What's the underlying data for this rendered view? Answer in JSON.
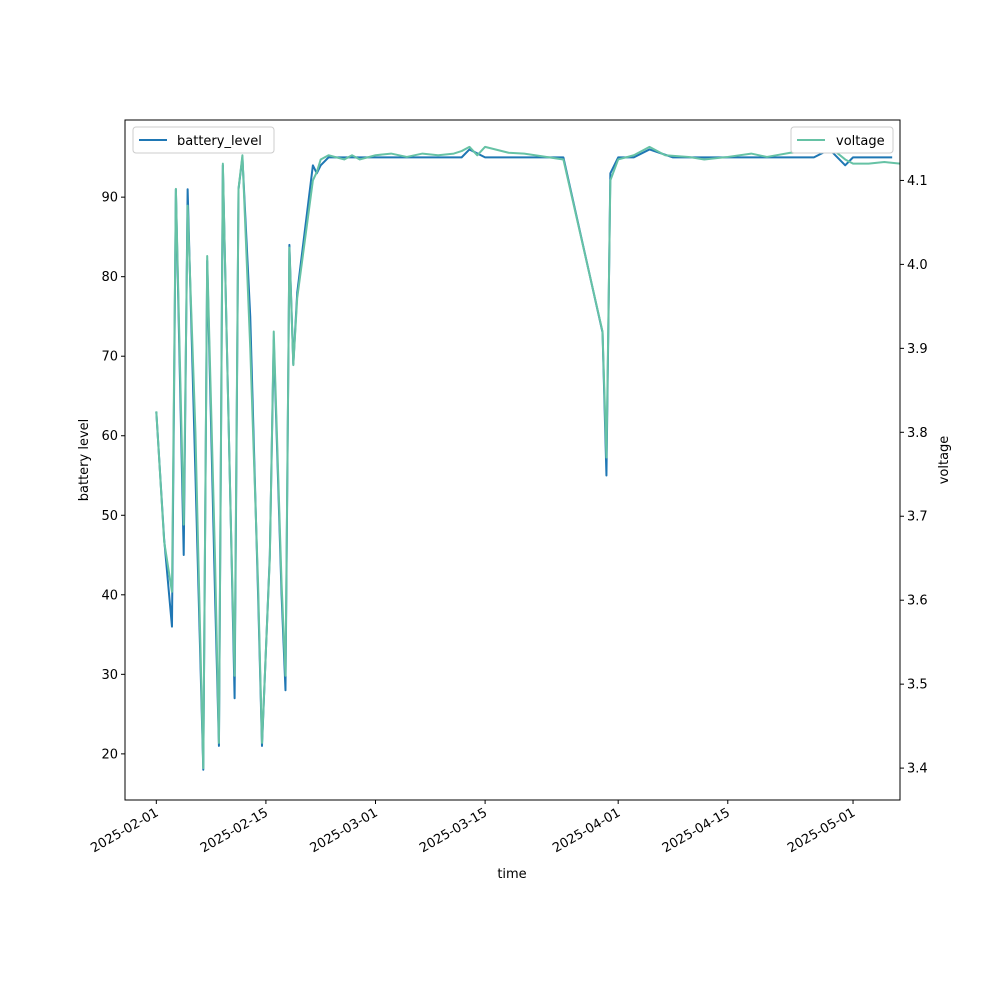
{
  "chart_data": {
    "type": "line",
    "xlabel": "time",
    "ylabel_left": "battery level",
    "ylabel_right": "voltage",
    "x_range": [
      "2025-01-28",
      "2025-05-07"
    ],
    "y_left_range": [
      14.2,
      99.7
    ],
    "y_right_range": [
      3.362,
      4.172
    ],
    "x_ticks": [
      "2025-02-01",
      "2025-02-15",
      "2025-03-01",
      "2025-03-15",
      "2025-04-01",
      "2025-04-15",
      "2025-05-01"
    ],
    "y_left_ticks": [
      20,
      30,
      40,
      50,
      60,
      70,
      80,
      90
    ],
    "y_right_ticks": [
      3.4,
      3.5,
      3.6,
      3.7,
      3.8,
      3.9,
      4.0,
      4.1
    ],
    "legend_left": {
      "label": "battery_level",
      "position": "top-left"
    },
    "legend_right": {
      "label": "voltage",
      "position": "top-right"
    },
    "colors": {
      "battery_level": "#1f77b4",
      "voltage": "#66c2a5"
    },
    "series": [
      {
        "name": "battery_level",
        "axis": "left",
        "points": [
          [
            "2025-02-01",
            63
          ],
          [
            "2025-02-02",
            47
          ],
          [
            "2025-02-03",
            36
          ],
          [
            "2025-02-03T12:00",
            91
          ],
          [
            "2025-02-04T12:00",
            45
          ],
          [
            "2025-02-05",
            91
          ],
          [
            "2025-02-06",
            55
          ],
          [
            "2025-02-07",
            18
          ],
          [
            "2025-02-07T12:00",
            82
          ],
          [
            "2025-02-08T12:00",
            40
          ],
          [
            "2025-02-09",
            21
          ],
          [
            "2025-02-09T12:00",
            94
          ],
          [
            "2025-02-10T12:00",
            50
          ],
          [
            "2025-02-11",
            27
          ],
          [
            "2025-02-11T12:00",
            91
          ],
          [
            "2025-02-12",
            95
          ],
          [
            "2025-02-13",
            75
          ],
          [
            "2025-02-14",
            40
          ],
          [
            "2025-02-14T12:00",
            21
          ],
          [
            "2025-02-15T12:00",
            45
          ],
          [
            "2025-02-16",
            72
          ],
          [
            "2025-02-17",
            40
          ],
          [
            "2025-02-17T12:00",
            28
          ],
          [
            "2025-02-18",
            84
          ],
          [
            "2025-02-18T12:00",
            69
          ],
          [
            "2025-02-19",
            78
          ],
          [
            "2025-02-21",
            94
          ],
          [
            "2025-02-21T12:00",
            93
          ],
          [
            "2025-02-22",
            94
          ],
          [
            "2025-02-23",
            95
          ],
          [
            "2025-03-10",
            95
          ],
          [
            "2025-03-12",
            95
          ],
          [
            "2025-03-13",
            96
          ],
          [
            "2025-03-15",
            95
          ],
          [
            "2025-03-25",
            95
          ],
          [
            "2025-03-30",
            73
          ],
          [
            "2025-03-30T12:00",
            55
          ],
          [
            "2025-03-31",
            93
          ],
          [
            "2025-04-01",
            95
          ],
          [
            "2025-04-03",
            95
          ],
          [
            "2025-04-05",
            96
          ],
          [
            "2025-04-08",
            95
          ],
          [
            "2025-04-20",
            95
          ],
          [
            "2025-04-26",
            95
          ],
          [
            "2025-04-28",
            96
          ],
          [
            "2025-04-30",
            94
          ],
          [
            "2025-05-01",
            95
          ],
          [
            "2025-05-06",
            95
          ]
        ]
      },
      {
        "name": "voltage",
        "axis": "right",
        "points": [
          [
            "2025-02-01",
            3.825
          ],
          [
            "2025-02-02",
            3.67
          ],
          [
            "2025-02-03",
            3.61
          ],
          [
            "2025-02-03T12:00",
            4.09
          ],
          [
            "2025-02-04T12:00",
            3.69
          ],
          [
            "2025-02-05",
            4.07
          ],
          [
            "2025-02-06",
            3.8
          ],
          [
            "2025-02-07",
            3.4
          ],
          [
            "2025-02-07T12:00",
            4.01
          ],
          [
            "2025-02-08T12:00",
            3.65
          ],
          [
            "2025-02-09",
            3.43
          ],
          [
            "2025-02-09T12:00",
            4.12
          ],
          [
            "2025-02-10T12:00",
            3.7
          ],
          [
            "2025-02-11",
            3.51
          ],
          [
            "2025-02-11T12:00",
            4.09
          ],
          [
            "2025-02-12",
            4.13
          ],
          [
            "2025-02-13",
            3.9
          ],
          [
            "2025-02-14",
            3.62
          ],
          [
            "2025-02-14T12:00",
            3.43
          ],
          [
            "2025-02-15T12:00",
            3.65
          ],
          [
            "2025-02-16",
            3.92
          ],
          [
            "2025-02-17",
            3.62
          ],
          [
            "2025-02-17T12:00",
            3.51
          ],
          [
            "2025-02-18",
            4.02
          ],
          [
            "2025-02-18T12:00",
            3.88
          ],
          [
            "2025-02-19",
            3.96
          ],
          [
            "2025-02-21",
            4.1
          ],
          [
            "2025-02-21T12:00",
            4.11
          ],
          [
            "2025-02-22",
            4.125
          ],
          [
            "2025-02-23",
            4.13
          ],
          [
            "2025-02-25",
            4.125
          ],
          [
            "2025-02-26",
            4.13
          ],
          [
            "2025-02-27",
            4.125
          ],
          [
            "2025-03-01",
            4.13
          ],
          [
            "2025-03-03",
            4.132
          ],
          [
            "2025-03-05",
            4.128
          ],
          [
            "2025-03-07",
            4.132
          ],
          [
            "2025-03-09",
            4.13
          ],
          [
            "2025-03-11",
            4.132
          ],
          [
            "2025-03-12",
            4.135
          ],
          [
            "2025-03-13",
            4.14
          ],
          [
            "2025-03-14",
            4.13
          ],
          [
            "2025-03-15",
            4.14
          ],
          [
            "2025-03-18",
            4.133
          ],
          [
            "2025-03-20",
            4.132
          ],
          [
            "2025-03-25",
            4.125
          ],
          [
            "2025-03-30",
            3.92
          ],
          [
            "2025-03-30T12:00",
            3.77
          ],
          [
            "2025-03-31",
            4.1
          ],
          [
            "2025-04-01",
            4.125
          ],
          [
            "2025-04-03",
            4.13
          ],
          [
            "2025-04-05",
            4.14
          ],
          [
            "2025-04-07",
            4.13
          ],
          [
            "2025-04-10",
            4.128
          ],
          [
            "2025-04-12",
            4.125
          ],
          [
            "2025-04-15",
            4.128
          ],
          [
            "2025-04-18",
            4.132
          ],
          [
            "2025-04-20",
            4.128
          ],
          [
            "2025-04-23",
            4.133
          ],
          [
            "2025-04-26",
            4.135
          ],
          [
            "2025-04-28",
            4.14
          ],
          [
            "2025-04-30",
            4.125
          ],
          [
            "2025-05-01",
            4.12
          ],
          [
            "2025-05-03",
            4.12
          ],
          [
            "2025-05-05",
            4.122
          ],
          [
            "2025-05-07",
            4.12
          ]
        ]
      }
    ]
  }
}
